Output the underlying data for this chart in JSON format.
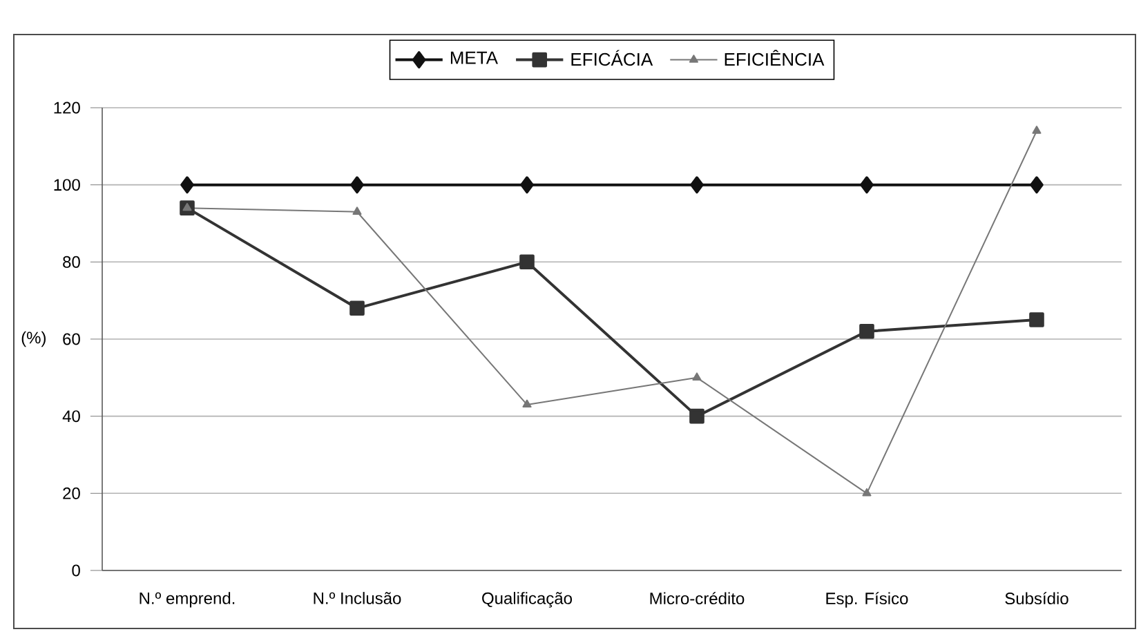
{
  "chart_data": {
    "type": "line",
    "ylabel": "(%)",
    "categories": [
      "N.º emprend.",
      "N.º Inclusão",
      "Qualificação",
      "Micro-crédito",
      "Esp. Físico",
      "Subsídio"
    ],
    "series": [
      {
        "name": "META",
        "color": "#111111",
        "marker": "diamond",
        "values": [
          100,
          100,
          100,
          100,
          100,
          100
        ]
      },
      {
        "name": "EFICÁCIA",
        "color": "#333333",
        "marker": "square",
        "values": [
          94,
          68,
          80,
          40,
          62,
          65
        ]
      },
      {
        "name": "EFICIÊNCIA",
        "color": "#777777",
        "marker": "triangle",
        "values": [
          94,
          93,
          43,
          50,
          20,
          114
        ]
      }
    ],
    "ylim": [
      0,
      120
    ],
    "yticks": [
      0,
      20,
      40,
      60,
      80,
      100,
      120
    ],
    "grid": "y",
    "legend": "top",
    "line_style": "solid"
  }
}
